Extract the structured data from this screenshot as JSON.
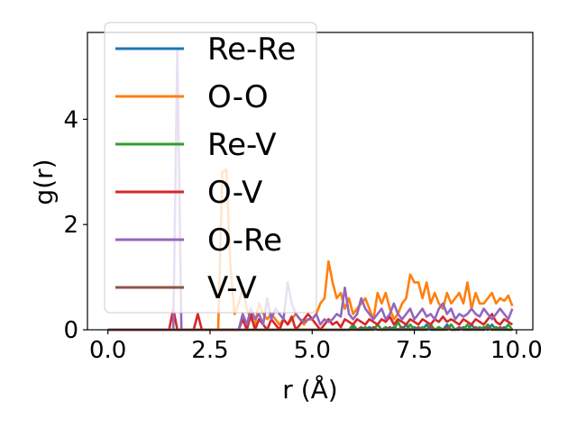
{
  "chart_data": {
    "type": "line",
    "title": "",
    "xlabel": "r (Å)",
    "ylabel": "g(r)",
    "xlim": [
      -0.5,
      10.4
    ],
    "ylim": [
      0,
      5.65
    ],
    "xticks": [
      0.0,
      2.5,
      5.0,
      7.5,
      10.0
    ],
    "xtick_labels": [
      "0.0",
      "2.5",
      "5.0",
      "7.5",
      "10.0"
    ],
    "yticks": [
      0,
      2,
      4
    ],
    "ytick_labels": [
      "0",
      "2",
      "4"
    ],
    "grid": false,
    "legend_position": "top-left",
    "x": [
      0.0,
      0.1,
      0.2,
      0.3,
      0.4,
      0.5,
      0.6,
      0.7,
      0.8,
      0.9,
      1.0,
      1.1,
      1.2,
      1.3,
      1.4,
      1.5,
      1.6,
      1.7,
      1.8,
      1.9,
      2.0,
      2.1,
      2.2,
      2.3,
      2.4,
      2.5,
      2.6,
      2.7,
      2.8,
      2.9,
      3.0,
      3.1,
      3.2,
      3.3,
      3.4,
      3.5,
      3.6,
      3.7,
      3.8,
      3.9,
      4.0,
      4.1,
      4.2,
      4.3,
      4.4,
      4.5,
      4.6,
      4.7,
      4.8,
      4.9,
      5.0,
      5.1,
      5.2,
      5.3,
      5.4,
      5.5,
      5.6,
      5.7,
      5.8,
      5.9,
      6.0,
      6.1,
      6.2,
      6.3,
      6.4,
      6.5,
      6.6,
      6.7,
      6.8,
      6.9,
      7.0,
      7.1,
      7.2,
      7.3,
      7.4,
      7.5,
      7.6,
      7.7,
      7.8,
      7.9,
      8.0,
      8.1,
      8.2,
      8.3,
      8.4,
      8.5,
      8.6,
      8.7,
      8.8,
      8.9,
      9.0,
      9.1,
      9.2,
      9.3,
      9.4,
      9.5,
      9.6,
      9.7,
      9.8,
      9.9
    ],
    "series": [
      {
        "name": "Re-Re",
        "color": "#1f77b4",
        "values": [
          0,
          0,
          0,
          0,
          0,
          0,
          0,
          0,
          0,
          0,
          0,
          0,
          0,
          0,
          0,
          0,
          0,
          0,
          0,
          0,
          0,
          0,
          0,
          0,
          0,
          0,
          0,
          0,
          0,
          0,
          0,
          0,
          0,
          0,
          0,
          0,
          0,
          0,
          0,
          0,
          0,
          0,
          0,
          0,
          0,
          0,
          0,
          0,
          0,
          0,
          0,
          0,
          0,
          0,
          0,
          0,
          0,
          0,
          0,
          0,
          0.05,
          0,
          0,
          0,
          0.05,
          0,
          0.1,
          0,
          0,
          0,
          0.05,
          0,
          0,
          0.1,
          0,
          0.05,
          0,
          0,
          0.1,
          0,
          0,
          0.05,
          0,
          0.1,
          0,
          0,
          0,
          0.05,
          0,
          0.1,
          0,
          0,
          0.05,
          0,
          0.1,
          0,
          0,
          0.05,
          0,
          0
        ]
      },
      {
        "name": "O-O",
        "color": "#ff7f0e",
        "values": [
          0,
          0,
          0,
          0,
          0,
          0,
          0,
          0,
          0,
          0,
          0,
          0,
          0,
          0,
          0,
          0,
          0,
          0,
          0,
          0,
          0,
          0,
          0,
          0,
          0,
          0,
          0,
          0,
          3.0,
          3.05,
          1.2,
          0.3,
          0.5,
          0.8,
          0.4,
          0.2,
          0.1,
          0.5,
          0.3,
          0.2,
          0.3,
          0.2,
          0.1,
          0.2,
          0.1,
          0.2,
          0.3,
          0.2,
          0.1,
          0.2,
          0.2,
          0.3,
          0.5,
          0.6,
          1.3,
          0.9,
          0.6,
          0.7,
          0.4,
          0.6,
          0.3,
          0.4,
          0.5,
          0.6,
          0.4,
          0.2,
          0.7,
          0.5,
          0.7,
          0.4,
          0.2,
          0.3,
          0.5,
          0.6,
          1.05,
          0.9,
          0.9,
          0.6,
          0.9,
          0.5,
          0.7,
          0.5,
          0.4,
          0.7,
          0.5,
          0.6,
          0.7,
          0.5,
          0.9,
          0.4,
          0.7,
          0.5,
          0.5,
          0.6,
          0.7,
          0.5,
          0.6,
          0.55,
          0.65,
          0.45
        ]
      },
      {
        "name": "Re-V",
        "color": "#2ca02c",
        "values": [
          0,
          0,
          0,
          0,
          0,
          0,
          0,
          0,
          0,
          0,
          0,
          0,
          0,
          0,
          0,
          0,
          0,
          0,
          0,
          0,
          0,
          0,
          0,
          0,
          0,
          0,
          0,
          0,
          0,
          0,
          0,
          0,
          0,
          0,
          0,
          0,
          0,
          0,
          0,
          0,
          0,
          0,
          0,
          0,
          0,
          0,
          0,
          0,
          0,
          0,
          0,
          0,
          0,
          0,
          0,
          0,
          0,
          0,
          0,
          0,
          0.1,
          0,
          0,
          0.05,
          0,
          0,
          0.1,
          0,
          0.05,
          0,
          0,
          0.15,
          0,
          0,
          0.1,
          0,
          0,
          0.05,
          0,
          0.1,
          0,
          0.05,
          0,
          0,
          0.1,
          0,
          0.05,
          0,
          0.1,
          0,
          0,
          0.05,
          0,
          0.1,
          0,
          0.05,
          0,
          0,
          0.1,
          0
        ]
      },
      {
        "name": "O-V",
        "color": "#d62728",
        "values": [
          0,
          0,
          0,
          0,
          0,
          0,
          0,
          0,
          0,
          0,
          0,
          0,
          0,
          0,
          0,
          0,
          0.4,
          0,
          0,
          0,
          0,
          0,
          0.3,
          0,
          0,
          0,
          0,
          0,
          0,
          0,
          0,
          0,
          0,
          0.2,
          0,
          0.3,
          0,
          0.2,
          0.1,
          0,
          0.2,
          0.1,
          0,
          0.2,
          0.1,
          0.25,
          0,
          0.1,
          0.2,
          0.3,
          0.2,
          0.1,
          0,
          0.1,
          0.2,
          0.1,
          0.15,
          0.05,
          0.2,
          0.15,
          0.1,
          0.2,
          0.15,
          0.1,
          0.2,
          0.15,
          0.1,
          0.2,
          0.15,
          0.25,
          0.1,
          0.2,
          0.15,
          0.1,
          0.2,
          0.15,
          0.1,
          0.2,
          0.15,
          0.1,
          0.2,
          0.15,
          0.25,
          0.15,
          0.2,
          0.15,
          0.1,
          0.2,
          0.15,
          0.1,
          0.2,
          0.15,
          0.1,
          0.2,
          0.3,
          0.15,
          0.1,
          0.2,
          0.15,
          0.1
        ]
      },
      {
        "name": "O-Re",
        "color": "#9467bd",
        "values": [
          0,
          0,
          0,
          0,
          0,
          0,
          0,
          0,
          0,
          0,
          0,
          0,
          0,
          0,
          0,
          0,
          0,
          5.3,
          0,
          0,
          0,
          0,
          0,
          0,
          0,
          0,
          0,
          0,
          0,
          0,
          0,
          0,
          0,
          0.3,
          0.1,
          0.4,
          0.2,
          0.3,
          0.1,
          0.6,
          0.2,
          0.4,
          0.3,
          0.2,
          0.9,
          0.5,
          0.3,
          0.2,
          0.15,
          0.2,
          0.2,
          0.3,
          0.1,
          0.2,
          0.15,
          0.2,
          0.3,
          0.25,
          0.8,
          0.3,
          0.2,
          0.3,
          0.6,
          0.4,
          0.3,
          0.2,
          0.3,
          0.4,
          0.2,
          0.3,
          0.5,
          0.3,
          0.2,
          0.3,
          0.4,
          0.2,
          0.3,
          0.4,
          0.25,
          0.3,
          0.2,
          0.4,
          0.5,
          0.3,
          0.4,
          0.2,
          0.3,
          0.25,
          0.3,
          0.4,
          0.3,
          0.25,
          0.4,
          0.3,
          0.2,
          0.3,
          0.4,
          0.3,
          0.2,
          0.4
        ]
      },
      {
        "name": "V-V",
        "color": "#8c564b",
        "values": [
          0,
          0,
          0,
          0,
          0,
          0,
          0,
          0,
          0,
          0,
          0,
          0,
          0,
          0,
          0,
          0,
          0,
          0,
          0,
          0,
          0,
          0,
          0,
          0,
          0,
          0,
          0,
          0,
          0,
          0,
          0,
          0,
          0,
          0,
          0,
          0,
          0,
          0,
          0,
          0,
          0,
          0,
          0,
          0,
          0,
          0,
          0,
          0,
          0,
          0,
          0,
          0,
          0,
          0,
          0,
          0,
          0,
          0,
          0,
          0,
          0,
          0,
          0.05,
          0,
          0,
          0.05,
          0,
          0,
          0,
          0.05,
          0,
          0,
          0.05,
          0,
          0,
          0,
          0.05,
          0,
          0,
          0.05,
          0,
          0,
          0,
          0.05,
          0,
          0,
          0.05,
          0,
          0,
          0,
          0.05,
          0,
          0,
          0.05,
          0,
          0,
          0.05,
          0,
          0,
          0
        ]
      }
    ]
  }
}
